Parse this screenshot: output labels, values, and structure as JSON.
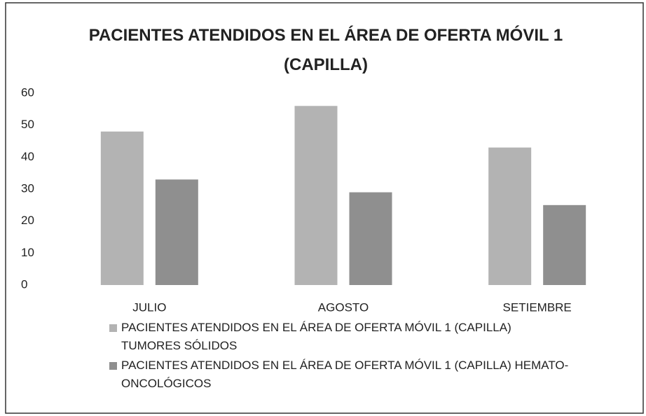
{
  "chart_data": {
    "type": "bar",
    "title": "PACIENTES ATENDIDOS EN EL ÁREA DE OFERTA MÓVIL 1 (CAPILLA)",
    "categories": [
      "JULIO",
      "AGOSTO",
      "SETIEMBRE"
    ],
    "series": [
      {
        "name": "PACIENTES ATENDIDOS EN EL ÁREA DE OFERTA MÓVIL 1 (CAPILLA) TUMORES  SÓLIDOS",
        "color": "#b3b3b3",
        "values": [
          48,
          56,
          43
        ]
      },
      {
        "name": "PACIENTES ATENDIDOS EN EL ÁREA DE OFERTA MÓVIL 1 (CAPILLA) HEMATO-ONCOLÓGICOS",
        "color": "#8f8f8f",
        "values": [
          33,
          29,
          25
        ]
      }
    ],
    "ylim": [
      0,
      60
    ],
    "yticks": [
      0,
      10,
      20,
      30,
      40,
      50,
      60
    ],
    "grid": false
  }
}
